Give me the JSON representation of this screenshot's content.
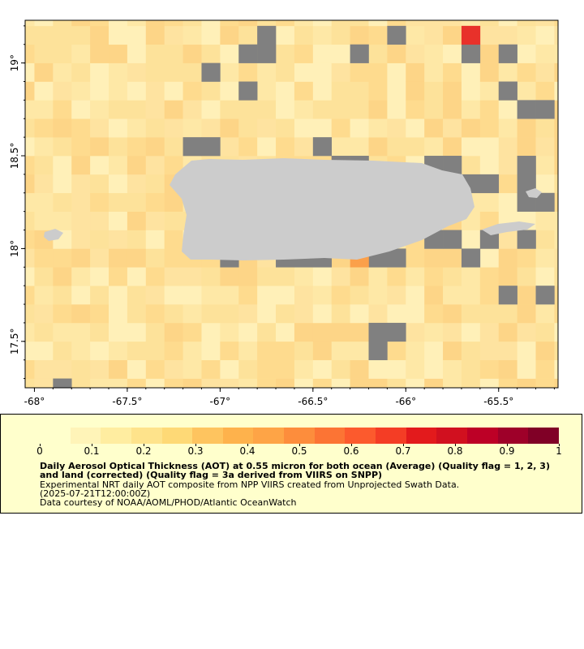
{
  "map": {
    "x_ticks": [
      {
        "lon": -68,
        "label": "-68°"
      },
      {
        "lon": -67.5,
        "label": "-67.5°"
      },
      {
        "lon": -67,
        "label": "-67°"
      },
      {
        "lon": -66.5,
        "label": "-66.5°"
      },
      {
        "lon": -66,
        "label": "-66°"
      },
      {
        "lon": -65.5,
        "label": "-65.5°"
      }
    ],
    "y_ticks": [
      {
        "lat": 19,
        "label": "19°"
      },
      {
        "lat": 18.5,
        "label": "18.5°"
      },
      {
        "lat": 18,
        "label": "18°"
      },
      {
        "lat": 17.5,
        "label": "17.5°"
      }
    ],
    "extent": {
      "lon_min": -68.05,
      "lon_max": -65.18,
      "lat_min": 17.25,
      "lat_max": 19.23
    },
    "cell_size_deg": 0.1,
    "colors": {
      "land": "#cccccc",
      "no_data": "#808080",
      "high_cell": "#e8312a",
      "frame": "#000000"
    },
    "no_data_cells": [
      [
        -67.85,
        17.25
      ],
      [
        -66.75,
        19.15
      ],
      [
        -66.75,
        19.05
      ],
      [
        -66.85,
        19.05
      ],
      [
        -66.05,
        19.15
      ],
      [
        -65.45,
        19.05
      ],
      [
        -65.65,
        19.05
      ],
      [
        -66.25,
        19.05
      ],
      [
        -67.05,
        18.95
      ],
      [
        -66.85,
        18.85
      ],
      [
        -65.45,
        18.85
      ],
      [
        -65.35,
        18.75
      ],
      [
        -65.25,
        18.75
      ],
      [
        -67.15,
        18.55
      ],
      [
        -67.05,
        18.55
      ],
      [
        -66.45,
        18.55
      ],
      [
        -66.35,
        18.45
      ],
      [
        -66.25,
        18.45
      ],
      [
        -65.85,
        18.45
      ],
      [
        -65.75,
        18.45
      ],
      [
        -65.35,
        18.45
      ],
      [
        -65.65,
        18.35
      ],
      [
        -65.55,
        18.35
      ],
      [
        -65.35,
        18.35
      ],
      [
        -65.25,
        18.25
      ],
      [
        -65.35,
        18.25
      ],
      [
        -65.85,
        18.05
      ],
      [
        -65.75,
        18.05
      ],
      [
        -65.55,
        18.05
      ],
      [
        -65.35,
        18.05
      ],
      [
        -65.65,
        17.95
      ],
      [
        -66.95,
        17.95
      ],
      [
        -66.65,
        17.95
      ],
      [
        -66.55,
        17.95
      ],
      [
        -66.45,
        17.95
      ],
      [
        -66.15,
        17.95
      ],
      [
        -66.05,
        17.95
      ],
      [
        -65.45,
        17.75
      ],
      [
        -65.25,
        17.75
      ],
      [
        -66.15,
        17.55
      ],
      [
        -66.05,
        17.55
      ],
      [
        -66.15,
        17.45
      ]
    ],
    "high_cells": [
      [
        -65.65,
        19.15,
        0.7
      ]
    ],
    "mid_cells": [
      [
        -66.25,
        17.95,
        0.35
      ]
    ]
  },
  "legend": {
    "colorbar": {
      "min": 0,
      "max": 1,
      "ticks": [
        {
          "v": 0,
          "label": "0"
        },
        {
          "v": 0.1,
          "label": "0.1"
        },
        {
          "v": 0.2,
          "label": "0.2"
        },
        {
          "v": 0.3,
          "label": "0.3"
        },
        {
          "v": 0.4,
          "label": "0.4"
        },
        {
          "v": 0.5,
          "label": "0.5"
        },
        {
          "v": 0.6,
          "label": "0.6"
        },
        {
          "v": 0.7,
          "label": "0.7"
        },
        {
          "v": 0.8,
          "label": "0.8"
        },
        {
          "v": 0.9,
          "label": "0.9"
        },
        {
          "v": 1,
          "label": "1"
        }
      ],
      "colors": [
        "#ffffcc",
        "#fff4b8",
        "#ffeda0",
        "#fee38b",
        "#fed976",
        "#fec45f",
        "#feb24c",
        "#fea446",
        "#fd8d3c",
        "#fc7434",
        "#fc5a2d",
        "#f43d25",
        "#e31a1c",
        "#d1101f",
        "#bd0026",
        "#9e0029",
        "#800026"
      ]
    },
    "title": "Daily Aerosol Optical Thickness (AOT) at 0.55 micron for both ocean (Average) (Quality flag = 1, 2, 3) and land (corrected) (Quality flag = 3a derived from VIIRS on SNPP)",
    "line1": "Experimental NRT daily AOT composite from NPP VIIRS created from Unprojected Swath Data.",
    "line2": "(2025-07-21T12:00:00Z)",
    "line3": "Data courtesy of NOAA/AOML/PHOD/Atlantic OceanWatch"
  }
}
